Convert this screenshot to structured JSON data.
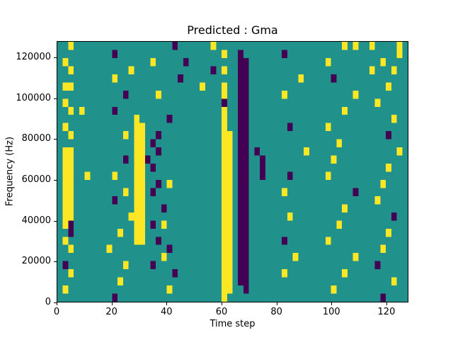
{
  "title": "Predicted : Gma",
  "chart_data": {
    "type": "heatmap",
    "title": "Predicted : Gma",
    "xlabel": "Time step",
    "ylabel": "Frequency (Hz)",
    "xlim": [
      0,
      128
    ],
    "ylim": [
      0,
      128000
    ],
    "xticks": [
      0,
      20,
      40,
      60,
      80,
      100,
      120
    ],
    "yticks": [
      0,
      20000,
      40000,
      60000,
      80000,
      100000,
      120000
    ],
    "legend": "none",
    "grid_on": false,
    "colormap": {
      "background": "#21918c",
      "high": "#fde725",
      "low": "#440154"
    },
    "value_key": {
      ".": "mid (teal)",
      "y": "high (yellow)",
      "d": "low (dark purple)"
    },
    "grid_cols": 64,
    "grid_rows": 32,
    "cell_time_span": 2,
    "cell_freq_span": 4000,
    "grid_order": "rows top (128000 Hz) to bottom (0 Hz); each row is 8 groups of 8 cells, left (t=0) to right (t=128)",
    "grid": [
      [
        "..y.....",
        "........",
        ".....d..",
        "....y...",
        "........",
        "........",
        "....y.y.",
        ".y....y."
      ],
      [
        "........",
        "..d.....",
        "........",
        "......y.",
        ".d......",
        ".d......",
        "........",
        "......y."
      ],
      [
        ".y......",
        "........",
        ".y.....d",
        "........",
        ".dd.....",
        "........",
        ".y......",
        "...y...."
      ],
      [
        "..y.....",
        ".....y..",
        "........",
        "....d.y.",
        ".dd.....",
        "........",
        "........",
        ".y...y.."
      ],
      [
        "........",
        "..y.....",
        "......d.",
        "........",
        ".dd.....",
        "....y...",
        "..d.....",
        "........"
      ],
      [
        ".yy.....",
        "........",
        "........",
        "..y...y.",
        ".dd.....",
        "........",
        "........",
        "....y..."
      ],
      [
        "........",
        "....d...",
        "..y.....",
        "......y.",
        ".dd.....",
        ".y......",
        "......y.",
        "........"
      ],
      [
        ".y......",
        "........",
        "........",
        "......d.",
        ".dd.....",
        "........",
        "........",
        "..y....."
      ],
      [
        "..y.y...",
        "..d.....",
        "........",
        "......y.",
        ".dd.....",
        "........",
        "....y...",
        "........"
      ],
      [
        "........",
        "......y.",
        "....d...",
        "......y.",
        ".dd.....",
        "........",
        "........",
        ".....y.."
      ],
      [
        ".y......",
        "......yy",
        "........",
        "......y.",
        ".dd.....",
        "..d.....",
        ".y......",
        "........"
      ],
      [
        "..y.....",
        "....y.yy",
        "..d.....",
        "......yy",
        ".dd.....",
        "........",
        "........",
        "....d..."
      ],
      [
        "........",
        "......yy",
        ".d......",
        "......yy",
        ".dd.....",
        "........",
        "...y....",
        "........"
      ],
      [
        ".yy.....",
        "......yy",
        "..d.....",
        "......yy",
        ".dd.d...",
        ".....y..",
        "........",
        "......y."
      ],
      [
        ".yy.....",
        "....d.yy",
        "d.......",
        "......yy",
        ".dd..d..",
        "........",
        "..y.....",
        "........"
      ],
      [
        ".yy.....",
        "......yy",
        ".d......",
        "......yy",
        ".dd..d..",
        "........",
        "........",
        "....y..."
      ],
      [
        ".yy..y..",
        "..y...yy",
        "........",
        "......yy",
        ".dd..d..",
        "..d.....",
        ".y......",
        "........"
      ],
      [
        ".yy.....",
        "......yy",
        "..d.y...",
        "......yy",
        ".dd.....",
        "........",
        "........",
        "...y...."
      ],
      [
        ".yy.....",
        "....y.yy",
        ".d......",
        "......yy",
        ".dd.....",
        ".y......",
        "......d.",
        "........"
      ],
      [
        ".yy.....",
        "..d...yy",
        "........",
        "......yy",
        ".dd.....",
        "........",
        "........",
        "..y....."
      ],
      [
        ".yy.....",
        "......yy",
        "...d....",
        "......yy",
        ".dd.....",
        "........",
        "....y...",
        "........"
      ],
      [
        ".yy.....",
        ".....yyy",
        "........",
        "......yy",
        ".dd.....",
        "..y.....",
        "........",
        ".....d.."
      ],
      [
        ".yd.....",
        "......yy",
        ".d.y....",
        "......yy",
        ".dd.....",
        "........",
        "...y....",
        "........"
      ],
      [
        "..d.....",
        "...y..yy",
        "........",
        "......yy",
        ".dd.....",
        "........",
        "........",
        "....y..."
      ],
      [
        ".y......",
        "......yy",
        "..d.....",
        "......yy",
        ".dd.....",
        ".d......",
        ".y......",
        "........"
      ],
      [
        "..y.....",
        ".y......",
        "....d...",
        "......yy",
        ".dd.....",
        "........",
        "........",
        "...y...."
      ],
      [
        "........",
        "........",
        "...y....",
        "......yy",
        ".dd.....",
        "...y....",
        "......y.",
        "........"
      ],
      [
        ".d......",
        "....y...",
        ".d......",
        "......yy",
        ".dd.....",
        "........",
        "........",
        "..d....."
      ],
      [
        "..y.....",
        "........",
        ".....d..",
        "......yy",
        ".dd.....",
        ".y......",
        "....y...",
        "........"
      ],
      [
        "........",
        "...y....",
        "........",
        "......yy",
        ".dd.....",
        "........",
        "........",
        ".....y.."
      ],
      [
        ".y......",
        "........",
        "....y...",
        "......yy",
        "..d.....",
        "........",
        "..y.....",
        "........"
      ],
      [
        "........",
        "..d.....",
        "........",
        "......y.",
        "........",
        "........",
        "........",
        "...d...."
      ]
    ]
  }
}
